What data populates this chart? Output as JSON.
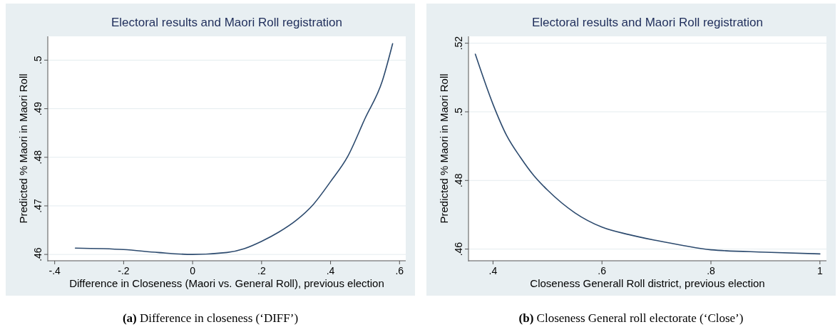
{
  "chart_data": [
    {
      "type": "line",
      "title": "Electoral results and Maori Roll registration",
      "xlabel": "Difference in Closeness (Maori vs. General Roll), previous election",
      "ylabel": "Predicted % Maori in Maori Roll",
      "x": [
        -0.34,
        -0.2,
        -0.1,
        0,
        0.1,
        0.15,
        0.2,
        0.25,
        0.3,
        0.35,
        0.4,
        0.45,
        0.5,
        0.55,
        0.58
      ],
      "series": [
        {
          "color": "#2c4a6e",
          "values": [
            0.4613,
            0.461,
            0.4604,
            0.46,
            0.4604,
            0.4612,
            0.4627,
            0.4646,
            0.467,
            0.4703,
            0.475,
            0.4802,
            0.488,
            0.4957,
            0.5034
          ]
        }
      ],
      "xlim": [
        -0.42,
        0.618
      ],
      "ylim": [
        0.4587,
        0.5049
      ],
      "xticks": [
        {
          "value": -0.4,
          "label": "-.4"
        },
        {
          "value": -0.2,
          "label": "-.2"
        },
        0,
        {
          "value": 0.2,
          "label": ".2"
        },
        {
          "value": 0.4,
          "label": ".4"
        },
        {
          "value": 0.6,
          "label": ".6"
        }
      ],
      "yticks": [
        {
          "value": 0.46,
          "label": ".46"
        },
        {
          "value": 0.47,
          "label": ".47"
        },
        {
          "value": 0.48,
          "label": ".48"
        },
        {
          "value": 0.49,
          "label": ".49"
        },
        {
          "value": 0.5,
          "label": ".5"
        }
      ],
      "grid": "y",
      "annotations": [
        "(a) Difference in closeness (‘DIFF’)"
      ]
    },
    {
      "type": "line",
      "title": "Electoral results and Maori Roll registration",
      "xlabel": "Closeness Generall Roll district, previous election",
      "ylabel": "Predicted % Maori in Maori Roll",
      "x": [
        0.3675,
        0.4,
        0.425,
        0.45,
        0.475,
        0.5,
        0.55,
        0.6,
        0.65,
        0.7,
        0.75,
        0.8,
        0.9,
        1
      ],
      "series": [
        {
          "color": "#2c4a6e",
          "values": [
            0.5168,
            0.5022,
            0.4931,
            0.4868,
            0.4814,
            0.4772,
            0.4706,
            0.4664,
            0.4642,
            0.4625,
            0.461,
            0.4598,
            0.4591,
            0.4586
          ]
        }
      ],
      "xlim": [
        0.355,
        1.012
      ],
      "ylim": [
        0.4566,
        0.522
      ],
      "xticks": [
        {
          "value": 0.4,
          "label": ".4"
        },
        {
          "value": 0.6,
          "label": ".6"
        },
        {
          "value": 0.8,
          "label": ".8"
        },
        1
      ],
      "yticks": [
        {
          "value": 0.46,
          "label": ".46"
        },
        {
          "value": 0.48,
          "label": ".48"
        },
        {
          "value": 0.5,
          "label": ".5"
        },
        {
          "value": 0.52,
          "label": ".52"
        }
      ],
      "grid": "y",
      "annotations": [
        "(b) Closeness General roll electorate (‘Close’)"
      ]
    }
  ]
}
